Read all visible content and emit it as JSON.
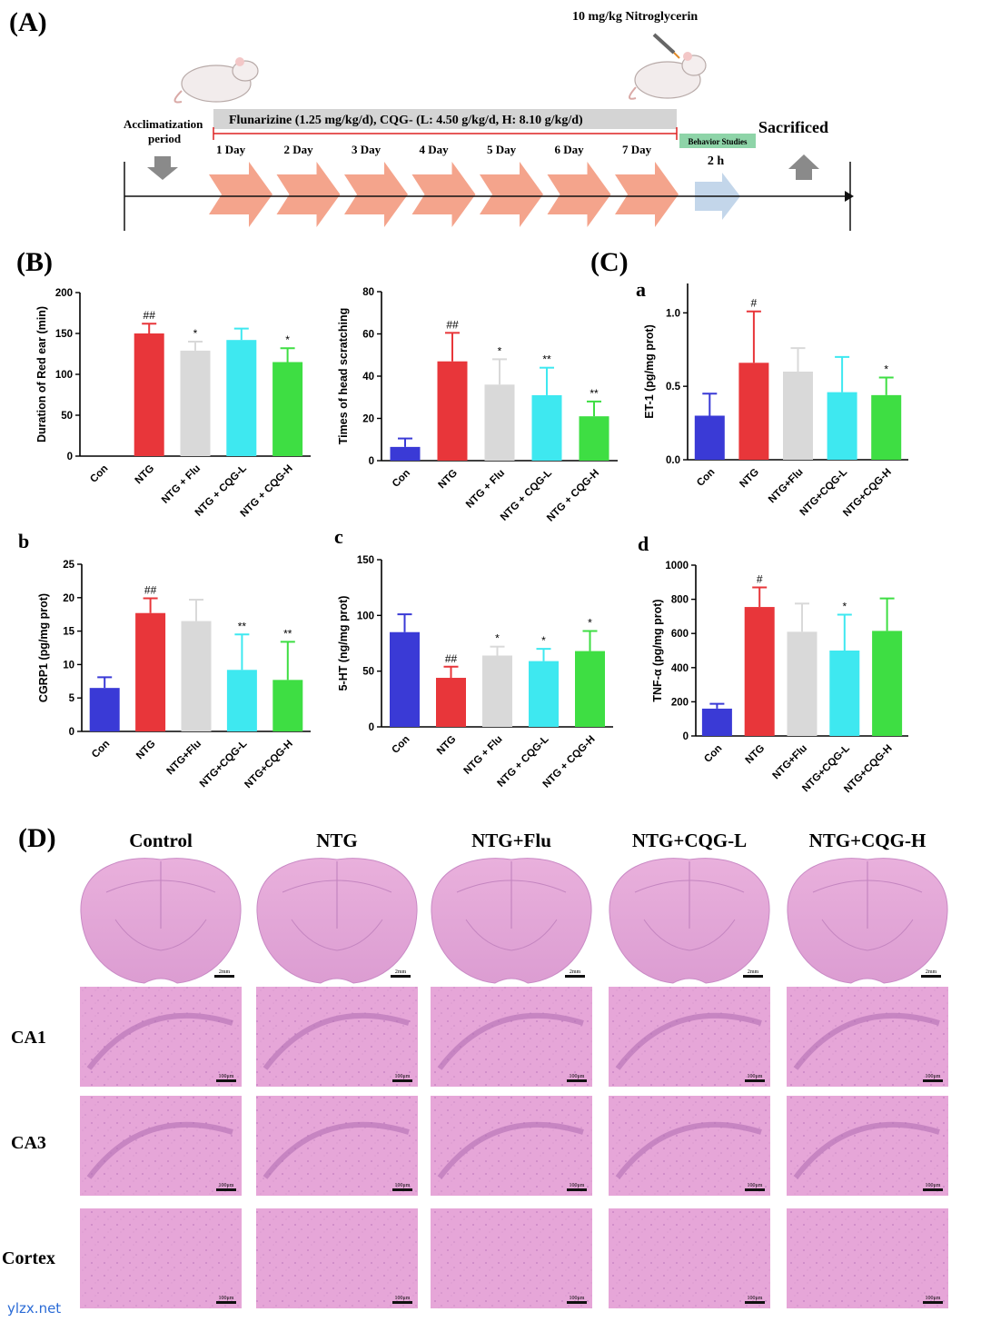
{
  "colors": {
    "con": "#3a3ad6",
    "ntg": "#e8363a",
    "flu": "#d9d9d9",
    "cqgl": "#3ee8f0",
    "cqgh": "#3ede43",
    "arrow": "#f4a48c",
    "arrow2h": "#c3d6ea",
    "behavior": "#8ed4a8",
    "grayArrow": "#8a8a8a",
    "he": "#e7a9d4",
    "heDark": "#c68cc9"
  },
  "panel_a": {
    "label": "(A)",
    "nitro": "10 mg/kg Nitroglycerin",
    "acclim": "Acclimatization",
    "period": "period",
    "treatment": "Flunarizine (1.25 mg/kg/d), CQG- (L: 4.50 g/kg/d, H: 8.10 g/kg/d)",
    "behavior": "Behavior Studies",
    "two_h": "2 h",
    "sacrificed": "Sacrificed",
    "days": [
      "1 Day",
      "2 Day",
      "3 Day",
      "4 Day",
      "5 Day",
      "6 Day",
      "7 Day"
    ]
  },
  "panel_labels": {
    "B": "(B)",
    "C": "(C)",
    "D": "(D)",
    "a": "a",
    "b": "b",
    "c": "c",
    "d": "d"
  },
  "chart_data": [
    {
      "id": "red-ear",
      "type": "bar",
      "ylabel": "Duration of Red ear (min)",
      "ylim": [
        0,
        200
      ],
      "yticks": [
        0,
        50,
        100,
        150,
        200
      ],
      "categories": [
        "Con",
        "NTG",
        "NTG + Flu",
        "NTG + CQG-L",
        "NTG + CQG-H"
      ],
      "values": [
        0,
        150,
        129,
        142,
        115
      ],
      "errors": [
        0,
        12,
        11,
        14,
        17
      ],
      "marks": [
        "",
        "##",
        "*",
        "",
        "*"
      ]
    },
    {
      "id": "head-scratch",
      "type": "bar",
      "ylabel": "Times of head scratching",
      "ylim": [
        0,
        80
      ],
      "yticks": [
        0,
        20,
        40,
        60,
        80
      ],
      "categories": [
        "Con",
        "NTG",
        "NTG + Flu",
        "NTG + CQG-L",
        "NTG + CQG-H"
      ],
      "values": [
        6.5,
        47,
        36,
        31,
        21
      ],
      "errors": [
        4,
        13.5,
        12,
        13,
        7
      ],
      "marks": [
        "",
        "##",
        "*",
        "**",
        "**"
      ]
    },
    {
      "id": "et1",
      "type": "bar",
      "ylabel": "ET-1 (pg/mg prot)",
      "ylim": [
        0,
        1.2
      ],
      "yticks": [
        0.0,
        0.5,
        1.0
      ],
      "ytick_labels": [
        "0.0",
        "0.5",
        "1.0"
      ],
      "categories": [
        "Con",
        "NTG",
        "NTG+Flu",
        "NTG+CQG-L",
        "NTG+CQG-H"
      ],
      "values": [
        0.3,
        0.66,
        0.6,
        0.46,
        0.44
      ],
      "errors": [
        0.15,
        0.35,
        0.16,
        0.24,
        0.12
      ],
      "marks": [
        "",
        "#",
        "",
        "",
        "*"
      ]
    },
    {
      "id": "cgrp1",
      "type": "bar",
      "ylabel": "CGRP1 (pg/mg prot)",
      "ylim": [
        0,
        25
      ],
      "yticks": [
        0,
        5,
        10,
        15,
        20,
        25
      ],
      "categories": [
        "Con",
        "NTG",
        "NTG+Flu",
        "NTG+CQG-L",
        "NTG+CQG-H"
      ],
      "values": [
        6.5,
        17.7,
        16.5,
        9.2,
        7.7
      ],
      "errors": [
        1.6,
        2.2,
        3.2,
        5.3,
        5.7
      ],
      "marks": [
        "",
        "##",
        "",
        "**",
        "**"
      ]
    },
    {
      "id": "5ht",
      "type": "bar",
      "ylabel": "5-HT (ng/mg prot)",
      "ylim": [
        0,
        150
      ],
      "yticks": [
        0,
        50,
        100,
        150
      ],
      "categories": [
        "Con",
        "NTG",
        "NTG + Flu",
        "NTG + CQG-L",
        "NTG + CQG-H"
      ],
      "values": [
        85,
        44,
        64,
        59,
        68
      ],
      "errors": [
        16,
        10,
        8,
        11,
        18
      ],
      "marks": [
        "",
        "##",
        "*",
        "*",
        "*"
      ]
    },
    {
      "id": "tnf",
      "type": "bar",
      "ylabel": "TNF-α (pg/mg prot)",
      "ylim": [
        0,
        1000
      ],
      "yticks": [
        0,
        200,
        400,
        600,
        800,
        1000
      ],
      "categories": [
        "Con",
        "NTG",
        "NTG+Flu",
        "NTG+CQG-L",
        "NTG+CQG-H"
      ],
      "values": [
        160,
        755,
        610,
        500,
        615
      ],
      "errors": [
        28,
        115,
        165,
        210,
        190
      ],
      "marks": [
        "",
        "#",
        "",
        "*",
        ""
      ]
    }
  ],
  "panel_d": {
    "columns": [
      "Control",
      "NTG",
      "NTG+Flu",
      "NTG+CQG-L",
      "NTG+CQG-H"
    ],
    "rows": [
      "CA1",
      "CA3",
      "Cortex"
    ],
    "scale_brain": "2mm",
    "scale_tissue": "100μm"
  },
  "watermark": "ylzx.net"
}
